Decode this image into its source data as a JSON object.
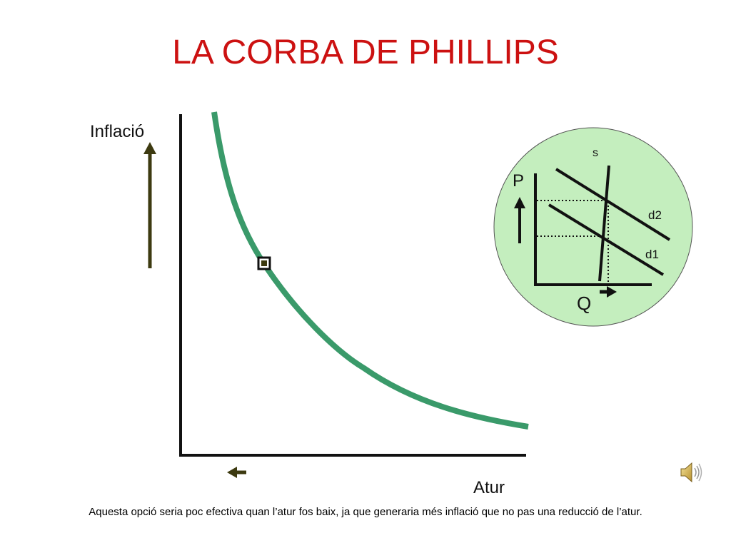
{
  "slide": {
    "title": "LA CORBA DE PHILLIPS",
    "note": "Aquesta opció seria poc efectiva quan l’atur fos baix, ja que generaria més inflació que no pas una reducció de l’atur."
  },
  "main_chart": {
    "y_label": "Inflació",
    "x_label": "Atur",
    "curve_color": "#3a9a6a",
    "axis_color": "#111111",
    "arrow_color": "#3d3a10"
  },
  "inset": {
    "s_label": "s",
    "p_label": "P",
    "q_label": "Q",
    "d2_label": "d2",
    "d1_label": "d1",
    "fill_color": "#c4eebe"
  },
  "icons": {
    "speaker": "speaker-icon"
  }
}
